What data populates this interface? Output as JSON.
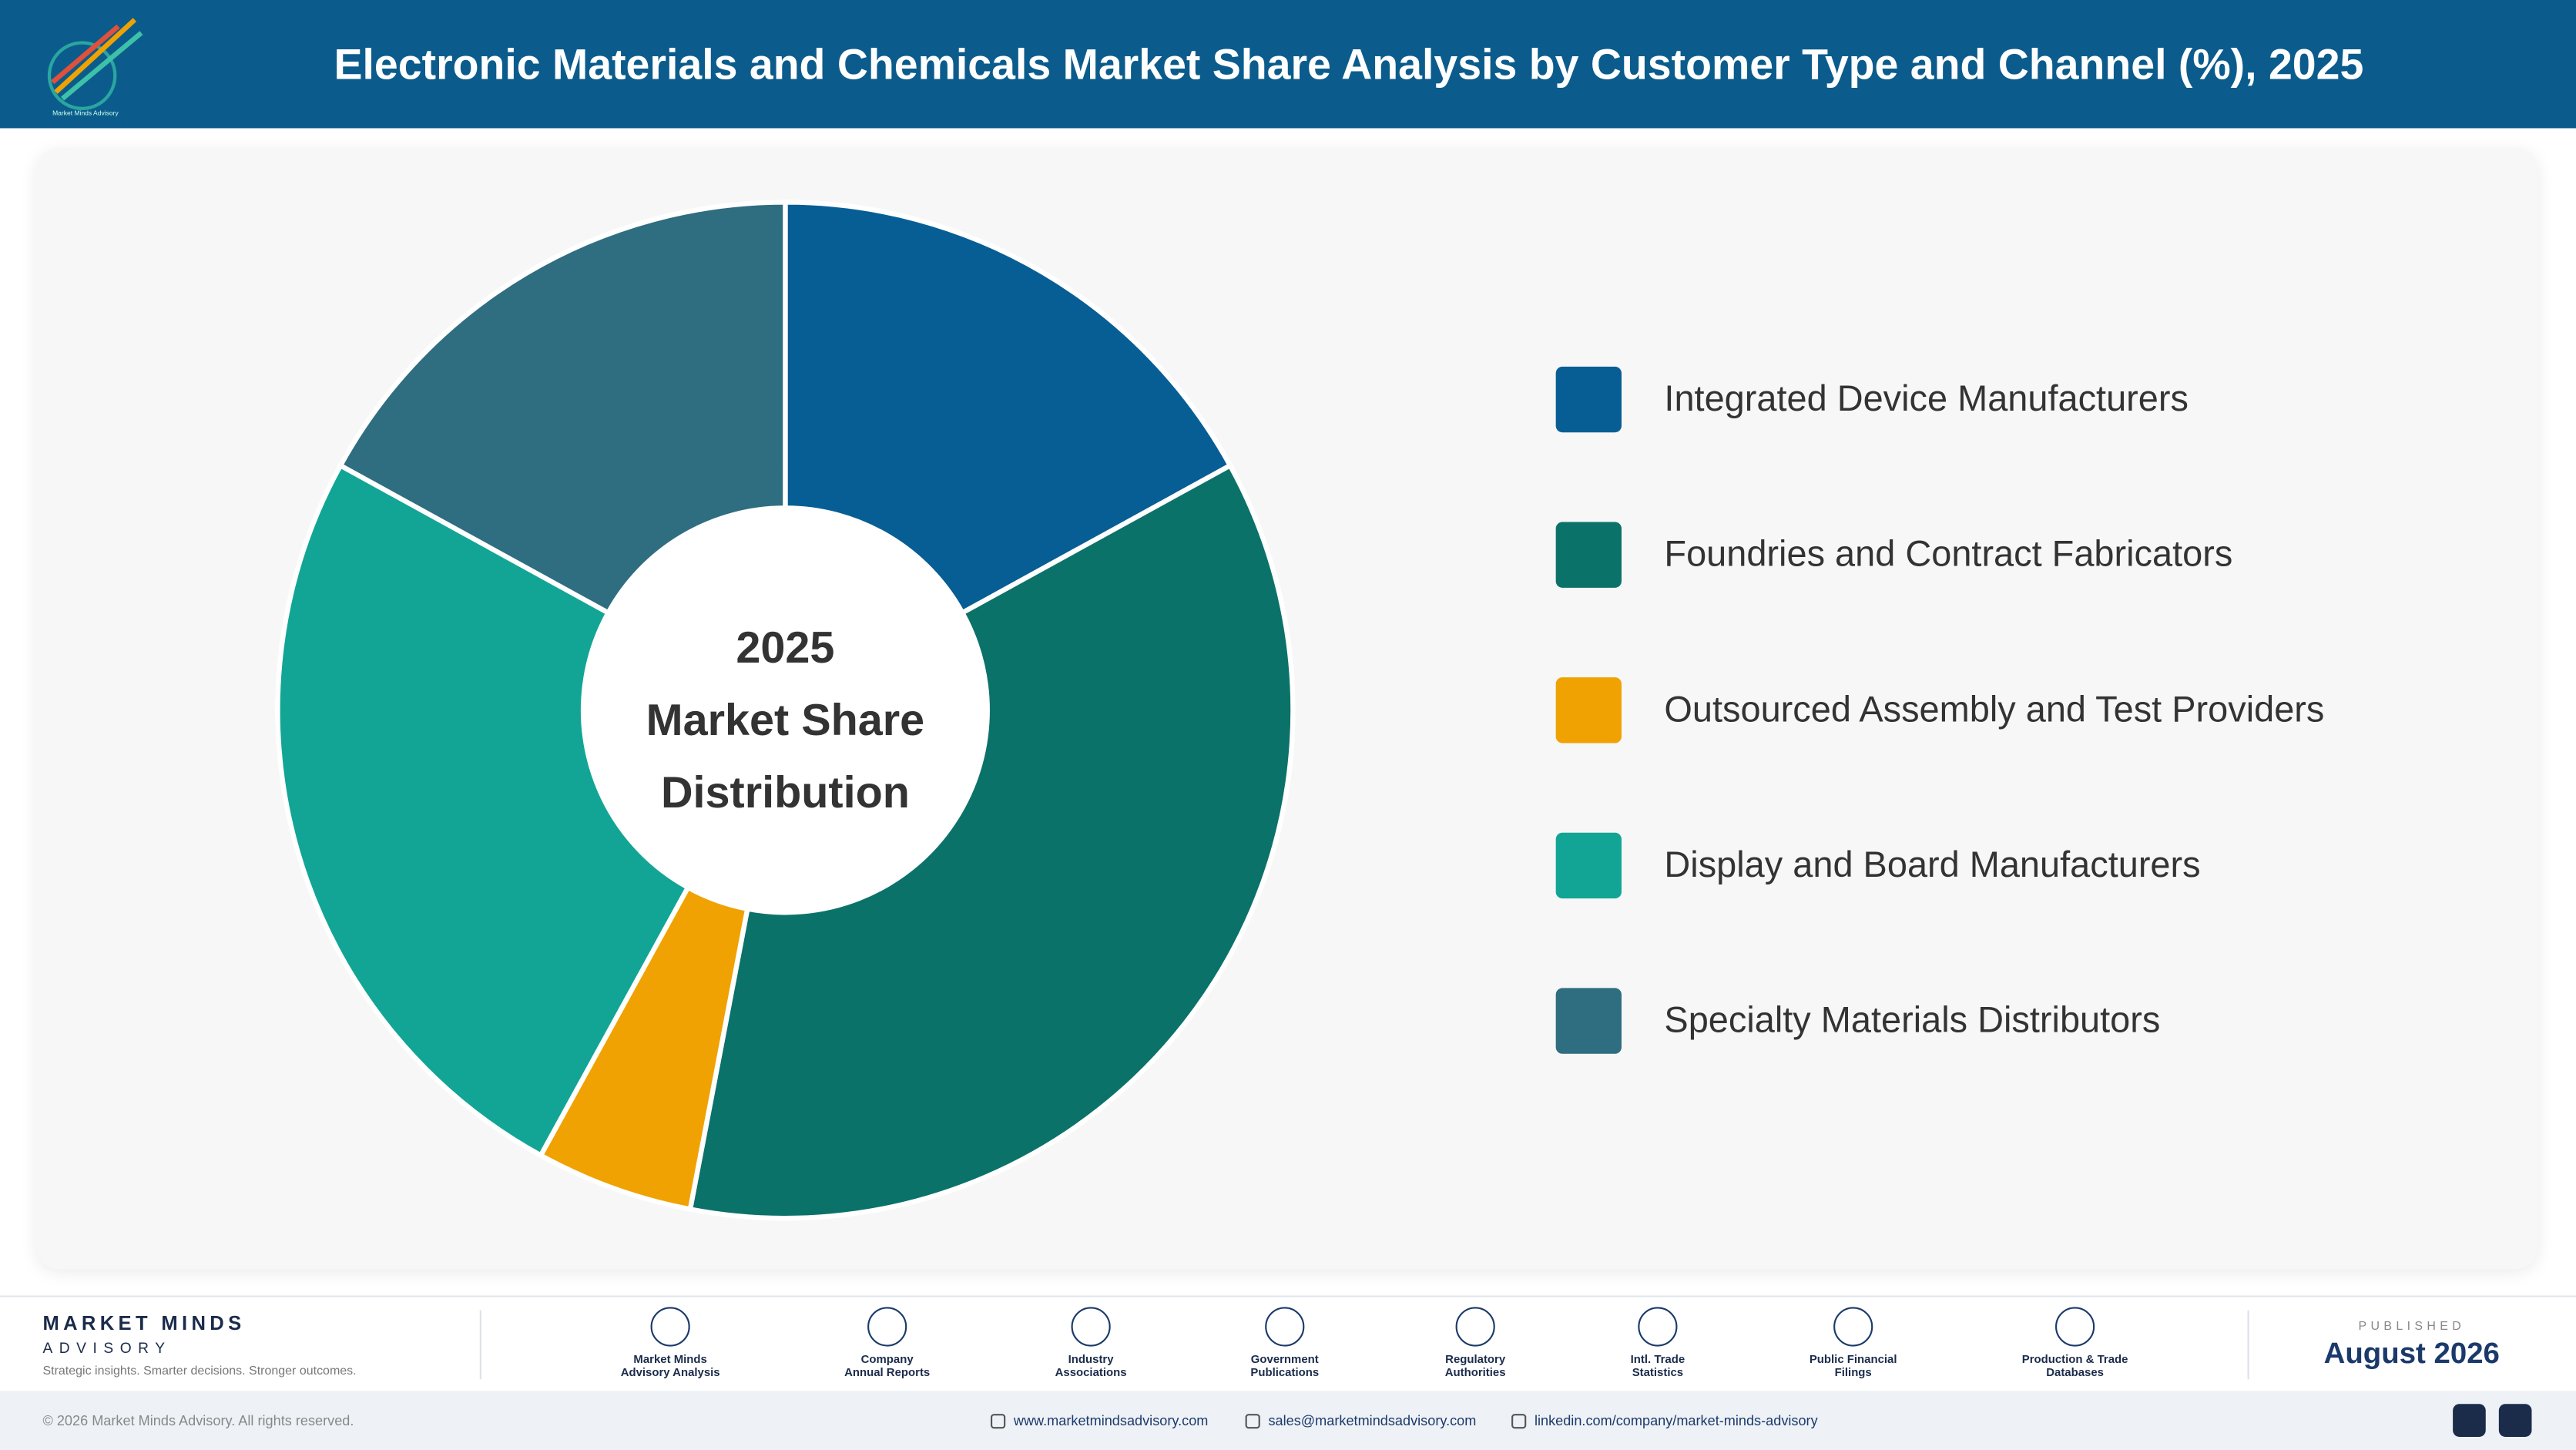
{
  "header": {
    "title": "Electronic Materials and Chemicals Market Share Analysis by Customer Type and Channel (%), 2025"
  },
  "chart_data": {
    "type": "donut",
    "center_text": [
      "2025",
      "Market Share",
      "Distribution"
    ],
    "categories": [
      "Integrated Device Manufacturers",
      "Foundries and Contract Fabricators",
      "Outsourced Assembly and Test Providers",
      "Display and Board Manufacturers",
      "Specialty Materials Distributors"
    ],
    "values": [
      17,
      36,
      5,
      25,
      17
    ],
    "colors": [
      "#075e94",
      "#0b7269",
      "#f0a202",
      "#12a595",
      "#2f6d80"
    ]
  },
  "footer": {
    "brand": "MARKET MINDS",
    "brand_sub": "ADVISORY",
    "tagline": "Strategic insights. Smarter decisions. Stronger outcomes.",
    "sources": [
      [
        "Market Minds",
        "Advisory Analysis"
      ],
      [
        "Company",
        "Annual Reports"
      ],
      [
        "Industry",
        "Associations"
      ],
      [
        "Government",
        "Publications"
      ],
      [
        "Regulatory",
        "Authorities"
      ],
      [
        "Intl. Trade",
        "Statistics"
      ],
      [
        "Public Financial",
        "Filings"
      ],
      [
        "Production & Trade",
        "Databases"
      ]
    ],
    "published_label": "PUBLISHED",
    "published_date": "August 2026",
    "copyright": "© 2026 Market Minds Advisory. All rights reserved.",
    "links": [
      "www.marketmindsadvisory.com",
      "sales@marketmindsadvisory.com",
      "linkedin.com/company/market-minds-advisory"
    ]
  }
}
